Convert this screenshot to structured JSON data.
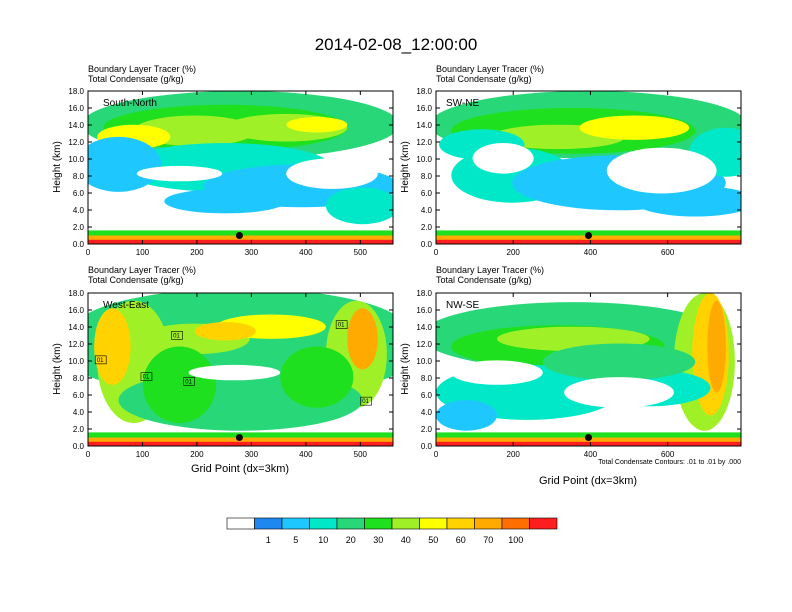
{
  "figure": {
    "title": "2014-02-08_12:00:00",
    "footnote": "Total Condensate Contours: .01 to .01 by .000"
  },
  "chart_data": [
    {
      "type": "heatmap",
      "panel": "South-North",
      "subtitle_lines": [
        "Boundary Layer Tracer   (%)",
        "Total Condensate   (g/kg)"
      ],
      "section_label": "South-North",
      "ylabel": "Height (km)",
      "xlabel": "",
      "ylim": [
        0,
        18
      ],
      "xlim": [
        0,
        560
      ],
      "yticks": [
        "0.0",
        "2.0",
        "4.0",
        "6.0",
        "8.0",
        "10.0",
        "12.0",
        "14.0",
        "16.0",
        "18.0"
      ],
      "xticks": [
        0,
        100,
        200,
        300,
        400,
        500
      ],
      "marker": {
        "x": 278,
        "y": 1.0
      },
      "contour_labels": []
    },
    {
      "type": "heatmap",
      "panel": "SW-NE",
      "subtitle_lines": [
        "Boundary Layer Tracer   (%)",
        "Total Condensate   (g/kg)"
      ],
      "section_label": "SW-NE",
      "ylabel": "Height (km)",
      "xlabel": "",
      "ylim": [
        0,
        18
      ],
      "xlim": [
        0,
        790
      ],
      "yticks": [
        "0.0",
        "2.0",
        "4.0",
        "6.0",
        "8.0",
        "10.0",
        "12.0",
        "14.0",
        "16.0",
        "18.0"
      ],
      "xticks": [
        0,
        200,
        400,
        600
      ],
      "marker": {
        "x": 395,
        "y": 1.0
      },
      "contour_labels": []
    },
    {
      "type": "heatmap",
      "panel": "West-East",
      "subtitle_lines": [
        "Boundary Layer Tracer   (%)",
        "Total Condensate   (g/kg)"
      ],
      "section_label": "West-East",
      "ylabel": "Height (km)",
      "xlabel": "Grid Point (dx=3km)",
      "ylim": [
        0,
        18
      ],
      "xlim": [
        0,
        560
      ],
      "yticks": [
        "0.0",
        "2.0",
        "4.0",
        "6.0",
        "8.0",
        "10.0",
        "12.0",
        "14.0",
        "16.0",
        "18.0"
      ],
      "xticks": [
        0,
        100,
        200,
        300,
        400,
        500
      ],
      "marker": {
        "x": 278,
        "y": 1.0
      },
      "contour_labels": [
        "01",
        "01",
        "01",
        "01",
        "01",
        "01"
      ]
    },
    {
      "type": "heatmap",
      "panel": "NW-SE",
      "subtitle_lines": [
        "Boundary Layer Tracer   (%)",
        "Total Condensate   (g/kg)"
      ],
      "section_label": "NW-SE",
      "ylabel": "Height (km)",
      "xlabel": "Grid Point (dx=3km)",
      "ylim": [
        0,
        18
      ],
      "xlim": [
        0,
        790
      ],
      "yticks": [
        "0.0",
        "2.0",
        "4.0",
        "6.0",
        "8.0",
        "10.0",
        "12.0",
        "14.0",
        "16.0",
        "18.0"
      ],
      "xticks": [
        0,
        200,
        400,
        600
      ],
      "marker": {
        "x": 395,
        "y": 1.0
      },
      "contour_labels": []
    }
  ],
  "colorbar": {
    "labels": [
      "1",
      "5",
      "10",
      "20",
      "30",
      "40",
      "50",
      "60",
      "70",
      "100"
    ],
    "colors": [
      "#ffffff",
      "#1e88f0",
      "#1ec8ff",
      "#00e8c8",
      "#28d878",
      "#1ee01e",
      "#a0f028",
      "#ffff00",
      "#ffd200",
      "#ffaa00",
      "#ff6e00",
      "#ff1e1e"
    ]
  }
}
